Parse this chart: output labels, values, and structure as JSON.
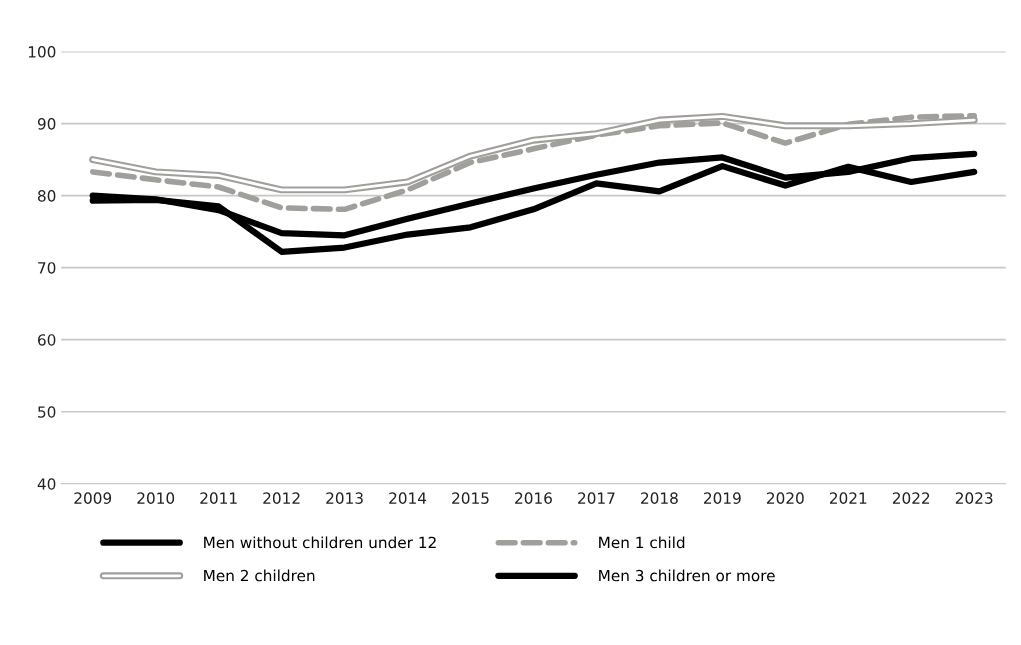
{
  "chart_data": {
    "type": "line",
    "categories": [
      "2009",
      "2010",
      "2011",
      "2012",
      "2013",
      "2014",
      "2015",
      "2016",
      "2017",
      "2018",
      "2019",
      "2020",
      "2021",
      "2022",
      "2023"
    ],
    "ylim": [
      40,
      100
    ],
    "yticks": [
      40,
      50,
      60,
      70,
      80,
      90,
      100
    ],
    "grid": "y",
    "legend": "bottom",
    "series": [
      {
        "name": "Men without children under 12",
        "color": "#000000",
        "line_style": "solid",
        "values": [
          80.0,
          79.5,
          78.0,
          74.8,
          74.5,
          76.8,
          78.9,
          81.0,
          82.9,
          84.6,
          85.3,
          82.5,
          83.3,
          85.2,
          85.8
        ]
      },
      {
        "name": "Men 1 child",
        "color": "#a09f9b",
        "line_style": "dashed",
        "values": [
          83.3,
          82.2,
          81.2,
          78.3,
          78.1,
          80.8,
          84.6,
          86.5,
          88.4,
          89.7,
          90.1,
          87.3,
          89.9,
          90.9,
          91.1
        ]
      },
      {
        "name": "Men 2 children",
        "color": "#a09f9b",
        "line_style": "solid",
        "values": [
          85.0,
          83.3,
          82.8,
          80.8,
          80.8,
          81.9,
          85.5,
          87.7,
          88.6,
          90.5,
          91.0,
          89.7,
          89.7,
          90.0,
          90.5
        ]
      },
      {
        "name": "Men 3 children or more",
        "color": "#000000",
        "line_style": "solid",
        "values": [
          79.3,
          79.4,
          78.5,
          72.2,
          72.8,
          74.6,
          75.6,
          78.1,
          81.7,
          80.6,
          84.1,
          81.4,
          84.0,
          81.9,
          83.3
        ]
      }
    ]
  }
}
